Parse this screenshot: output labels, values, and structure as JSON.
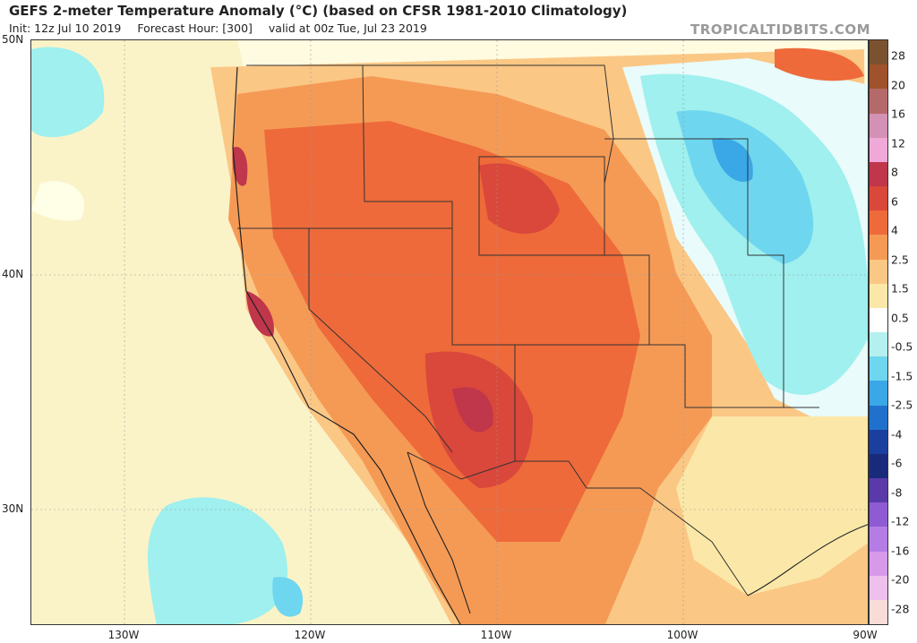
{
  "header": {
    "title": "GEFS 2-meter Temperature Anomaly (°C) (based on CFSR 1981-2010 Climatology)",
    "init": "Init: 12z Jul 10 2019",
    "forecast_hour": "Forecast Hour: [300]",
    "valid": "valid at 00z Tue, Jul 23 2019",
    "brand": "TROPICALTIDBITS.COM"
  },
  "axes": {
    "lat_labels": [
      "50N",
      "40N",
      "30N"
    ],
    "lon_labels": [
      "130W",
      "120W",
      "110W",
      "100W",
      "90W"
    ]
  },
  "colorbar": {
    "labels": [
      "28",
      "20",
      "16",
      "12",
      "8",
      "6",
      "4",
      "2.5",
      "1.5",
      "0.5",
      "-0.5",
      "-1.5",
      "-2.5",
      "-4",
      "-6",
      "-8",
      "-12",
      "-16",
      "-20",
      "-28"
    ],
    "colors": [
      "#7a5230",
      "#a0522d",
      "#b56a6a",
      "#d291b5",
      "#f0a8d8",
      "#c0364a",
      "#d9483a",
      "#ee6a3a",
      "#f59a55",
      "#fbc785",
      "#fbe8a8",
      "#ffffff",
      "#b5f0f0",
      "#6fd6ef",
      "#3aa7e6",
      "#2071cc",
      "#1a3f9e",
      "#1a2a7a",
      "#5a3aa8",
      "#8e5bd2",
      "#b67ce6",
      "#d69ae8",
      "#eec0ee",
      "#f7dcd8"
    ]
  },
  "map": {
    "ocean_color": "#fbe8a8",
    "hot_color": "#ee6a3a",
    "very_hot_color": "#c0364a",
    "cool_color": "#7fe3ee",
    "cold_color": "#3aa7e6"
  }
}
